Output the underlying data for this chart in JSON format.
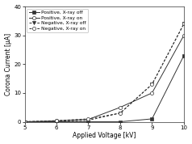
{
  "voltage": [
    5,
    6,
    7,
    8,
    9,
    10
  ],
  "positive_xray_off": [
    0,
    0,
    0,
    0,
    1.0,
    23
  ],
  "positive_xray_on": [
    0,
    0.3,
    0.8,
    5,
    10,
    30
  ],
  "negative_xray_off": [
    0,
    0.2,
    0.5,
    3,
    13,
    34
  ],
  "negative_xray_on": [
    0,
    0.4,
    1.0,
    3,
    13,
    34
  ],
  "xlabel": "Applied Voltage [kV]",
  "ylabel": "Corona Current [μA]",
  "xlim": [
    5,
    10
  ],
  "ylim": [
    0,
    40
  ],
  "yticks": [
    0,
    10,
    20,
    30,
    40
  ],
  "xticks": [
    5,
    6,
    7,
    8,
    9,
    10
  ],
  "legend_labels": [
    "Positive, X-ray off",
    "Positive, X-ray on",
    "Negative, X-ray off",
    "Negative, X-ray on"
  ],
  "line_color": "#333333",
  "bg_color": "#ffffff"
}
